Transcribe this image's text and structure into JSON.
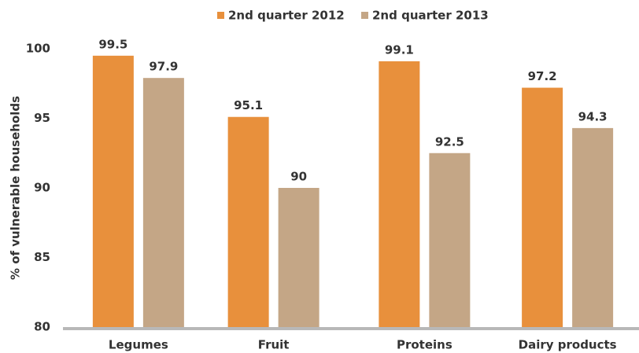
{
  "chart_data": {
    "type": "bar",
    "y_label": "% of vulnerable households",
    "categories": [
      "Legumes",
      "Fruit",
      "Proteins",
      "Dairy products"
    ],
    "series": [
      {
        "name": "2nd quarter 2012",
        "color": "#e8903c",
        "values": [
          99.5,
          95.1,
          99.1,
          97.2
        ]
      },
      {
        "name": "2nd quarter 2013",
        "color": "#c4a686",
        "values": [
          97.9,
          90,
          92.5,
          94.3
        ]
      }
    ],
    "ylim": [
      80,
      100
    ],
    "yticks": [
      80,
      85,
      90,
      95,
      100
    ],
    "legend": "top"
  }
}
